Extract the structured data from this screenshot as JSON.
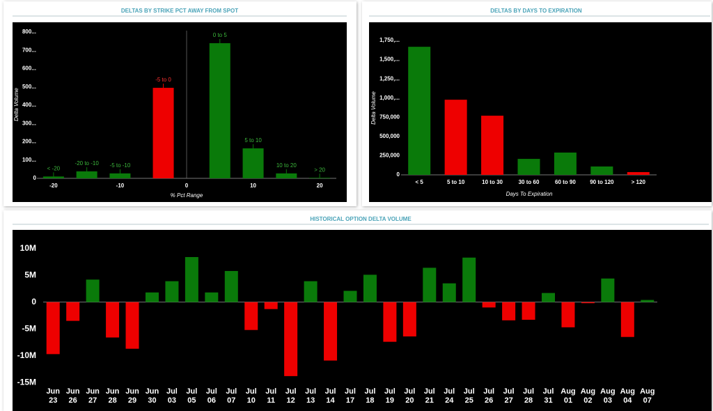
{
  "chart_data": [
    {
      "type": "bar",
      "title": "DELTAS BY STRIKE PCT AWAY FROM SPOT",
      "x_label": "% Pct Range",
      "y_label": "Delta Volume",
      "categories": [
        "< -20",
        "-20 to -10",
        "-5 to -10",
        "-5 to 0",
        "0 to 5",
        "5 to 10",
        "10 to 20",
        "> 20"
      ],
      "x": [
        -20,
        -15,
        -10,
        -3.5,
        5,
        10,
        15,
        20
      ],
      "values": [
        10,
        38,
        27,
        495,
        739,
        164,
        27,
        3
      ],
      "colors": [
        "#0a7a0a",
        "#0a7a0a",
        "#0a7a0a",
        "#ee0000",
        "#0a7a0a",
        "#0a7a0a",
        "#0a7a0a",
        "#0a7a0a"
      ],
      "xlim": [
        -22.5,
        22.5
      ],
      "xticks": [
        -20,
        -10,
        0,
        10,
        20
      ],
      "ylim": [
        0,
        800
      ],
      "yticks": [
        0,
        {
          "value": 100,
          "label": "100..."
        },
        {
          "value": 200,
          "label": "200..."
        },
        {
          "value": 300,
          "label": "300..."
        },
        {
          "value": 400,
          "label": "400..."
        },
        {
          "value": 500,
          "label": "500..."
        },
        {
          "value": 600,
          "label": "600..."
        },
        {
          "value": 700,
          "label": "700..."
        },
        {
          "value": 800,
          "label": "800..."
        }
      ]
    },
    {
      "type": "bar",
      "title": "DELTAS BY DAYS TO EXPIRATION",
      "x_label": "Days To Expiration",
      "y_label": "Delta Volume",
      "categories": [
        "< 5",
        "5 to 10",
        "10 to 30",
        "30 to 60",
        "60 to 90",
        "90 to 120",
        "> 120"
      ],
      "values": [
        1667000,
        978000,
        770000,
        208000,
        290000,
        109000,
        36000
      ],
      "colors": [
        "#0a7a0a",
        "#ee0000",
        "#ee0000",
        "#0a7a0a",
        "#0a7a0a",
        "#0a7a0a",
        "#ee0000"
      ],
      "ylim": [
        0,
        1750000
      ],
      "yticks": [
        0,
        {
          "value": 250000,
          "label": "250,000"
        },
        {
          "value": 500000,
          "label": "500,000"
        },
        {
          "value": 750000,
          "label": "750,000"
        },
        {
          "value": 1000000,
          "label": "1,000,..."
        },
        {
          "value": 1250000,
          "label": "1,250,..."
        },
        {
          "value": 1500000,
          "label": "1,500,..."
        },
        {
          "value": 1750000,
          "label": "1,750,..."
        }
      ]
    },
    {
      "type": "bar",
      "title": "HISTORICAL OPTION DELTA VOLUME",
      "categories": [
        "Jun 23",
        "Jun 26",
        "Jun 27",
        "Jun 28",
        "Jun 29",
        "Jun 30",
        "Jul 03",
        "Jul 05",
        "Jul 06",
        "Jul 07",
        "Jul 10",
        "Jul 11",
        "Jul 12",
        "Jul 13",
        "Jul 14",
        "Jul 17",
        "Jul 18",
        "Jul 19",
        "Jul 20",
        "Jul 21",
        "Jul 24",
        "Jul 25",
        "Jul 26",
        "Jul 27",
        "Jul 28",
        "Jul 31",
        "Aug 01",
        "Aug 02",
        "Aug 03",
        "Aug 04",
        "Aug 07"
      ],
      "values": [
        -9700000,
        -3500000,
        4200000,
        -6600000,
        -8700000,
        1800000,
        3900000,
        8400000,
        1800000,
        5800000,
        -5200000,
        -1300000,
        -13800000,
        3900000,
        -10900000,
        2100000,
        5100000,
        -7400000,
        -6400000,
        6400000,
        3500000,
        8300000,
        -1000000,
        -3400000,
        -3300000,
        1700000,
        -4700000,
        -200000,
        4400000,
        -6500000,
        400000
      ],
      "positive_color": "#0a7a0a",
      "negative_color": "#ee0000",
      "ylim": [
        -15500000,
        11000000
      ],
      "yticks": [
        {
          "value": 10000000,
          "label": "10M"
        },
        {
          "value": 5000000,
          "label": "5M"
        },
        0,
        {
          "value": -5000000,
          "label": "-5M"
        },
        {
          "value": -10000000,
          "label": "-10M"
        },
        {
          "value": -15000000,
          "label": "-15M"
        }
      ]
    }
  ]
}
